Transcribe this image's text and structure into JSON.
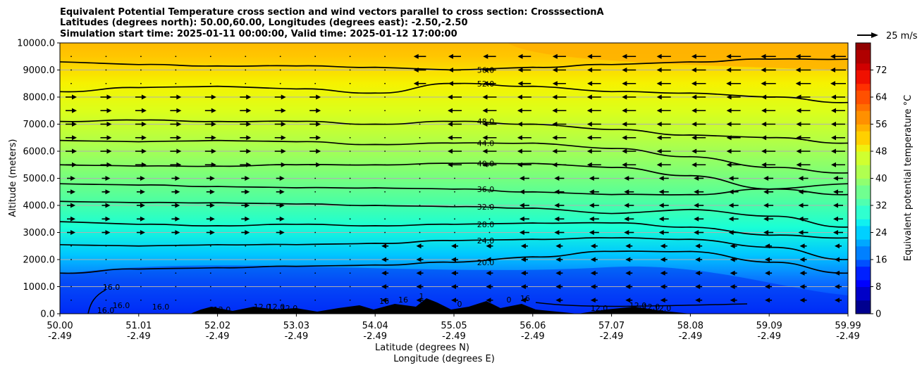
{
  "chart_data": {
    "type": "heatmap",
    "title_lines": [
      "Equivalent Potential Temperature cross section and wind vectors parallel to cross section: CrosssectionA",
      "Latitudes (degrees north): 50.00,60.00, Longitudes (degrees east): -2.50,-2.50",
      "Simulation start time: 2025-01-11 00:00:00, Valid time: 2025-01-12 17:00:00"
    ],
    "ylabel": "Altitude (meters)",
    "xlabel_line1": "Latitude (degrees N)",
    "xlabel_line2": "Longitude (degrees E)",
    "ylim": [
      0,
      10000
    ],
    "xlim": [
      50.0,
      59.99
    ],
    "y_ticks": [
      "0.0",
      "1000.0",
      "2000.0",
      "3000.0",
      "4000.0",
      "5000.0",
      "6000.0",
      "7000.0",
      "8000.0",
      "9000.0",
      "10000.0"
    ],
    "x_ticks": [
      {
        "lat": "50.00",
        "lon": "-2.49"
      },
      {
        "lat": "51.01",
        "lon": "-2.49"
      },
      {
        "lat": "52.02",
        "lon": "-2.49"
      },
      {
        "lat": "53.03",
        "lon": "-2.49"
      },
      {
        "lat": "54.04",
        "lon": "-2.49"
      },
      {
        "lat": "55.05",
        "lon": "-2.49"
      },
      {
        "lat": "56.06",
        "lon": "-2.49"
      },
      {
        "lat": "57.07",
        "lon": "-2.49"
      },
      {
        "lat": "58.08",
        "lon": "-2.49"
      },
      {
        "lat": "59.09",
        "lon": "-2.49"
      },
      {
        "lat": "59.99",
        "lon": "-2.49"
      }
    ],
    "colorbar": {
      "label": "Equivalent potential temperature $^\\circ$C",
      "label_display": "Equivalent potential temperature °C",
      "ticks": [
        "0",
        "8",
        "16",
        "24",
        "32",
        "40",
        "48",
        "56",
        "64",
        "72"
      ],
      "range": [
        0,
        80
      ]
    },
    "quiver_key_label": "25 m/s",
    "contours": [
      {
        "value": 20,
        "label": "20.0",
        "y": [
          1500,
          1650,
          1700,
          1750,
          1800,
          1900,
          2100,
          2300,
          2300,
          1900,
          1500
        ]
      },
      {
        "value": 24,
        "label": "24.0",
        "y": [
          2550,
          2500,
          2550,
          2550,
          2600,
          2700,
          2750,
          2800,
          2750,
          2450,
          2000
        ]
      },
      {
        "value": 28,
        "label": "28.0",
        "y": [
          3400,
          3300,
          3250,
          3300,
          3250,
          3300,
          3350,
          3350,
          3200,
          2900,
          2800
        ]
      },
      {
        "value": 32,
        "label": "32.0",
        "y": [
          4150,
          4100,
          4100,
          4050,
          4000,
          3950,
          3900,
          3700,
          3850,
          3600,
          3200
        ]
      },
      {
        "value": 36,
        "label": "36.0",
        "y": [
          4800,
          4750,
          4700,
          4650,
          4650,
          4600,
          4500,
          4400,
          4400,
          4600,
          4800
        ]
      },
      {
        "value": 40,
        "label": "40.0",
        "y": [
          5500,
          5450,
          5450,
          5500,
          5500,
          5550,
          5550,
          5400,
          5100,
          4600,
          4400
        ]
      },
      {
        "value": 44,
        "label": "44.0",
        "y": [
          6400,
          6350,
          6400,
          6350,
          6250,
          6300,
          6300,
          6100,
          5800,
          5400,
          5200
        ]
      },
      {
        "value": 48,
        "label": "48.0",
        "y": [
          7100,
          7150,
          7100,
          7100,
          7000,
          7100,
          7000,
          6800,
          6600,
          6500,
          6300
        ]
      },
      {
        "value": 52,
        "label": "52.0",
        "y": [
          8200,
          8350,
          8400,
          8300,
          8150,
          8500,
          8400,
          8200,
          8150,
          8000,
          7800
        ]
      },
      {
        "value": 56,
        "label": "56.0",
        "y": [
          9300,
          9200,
          9150,
          9150,
          9100,
          9000,
          9100,
          9200,
          9300,
          9400,
          9400
        ]
      }
    ],
    "extra_contour_labels": [
      "16.0",
      "16.0",
      "16.0",
      "16.0",
      "12.0",
      "12.0",
      "12.0",
      "12.0",
      "16",
      "16",
      "1",
      "0",
      "0",
      "16",
      "12.0",
      "12.0",
      "12.0",
      "12.0"
    ],
    "wind_levels": [
      9500,
      9000,
      8500,
      8000,
      7500,
      7000,
      6500,
      6000,
      5500,
      5000,
      4500,
      4000,
      3500,
      3000,
      2500,
      2000,
      1500,
      1000,
      500
    ]
  }
}
